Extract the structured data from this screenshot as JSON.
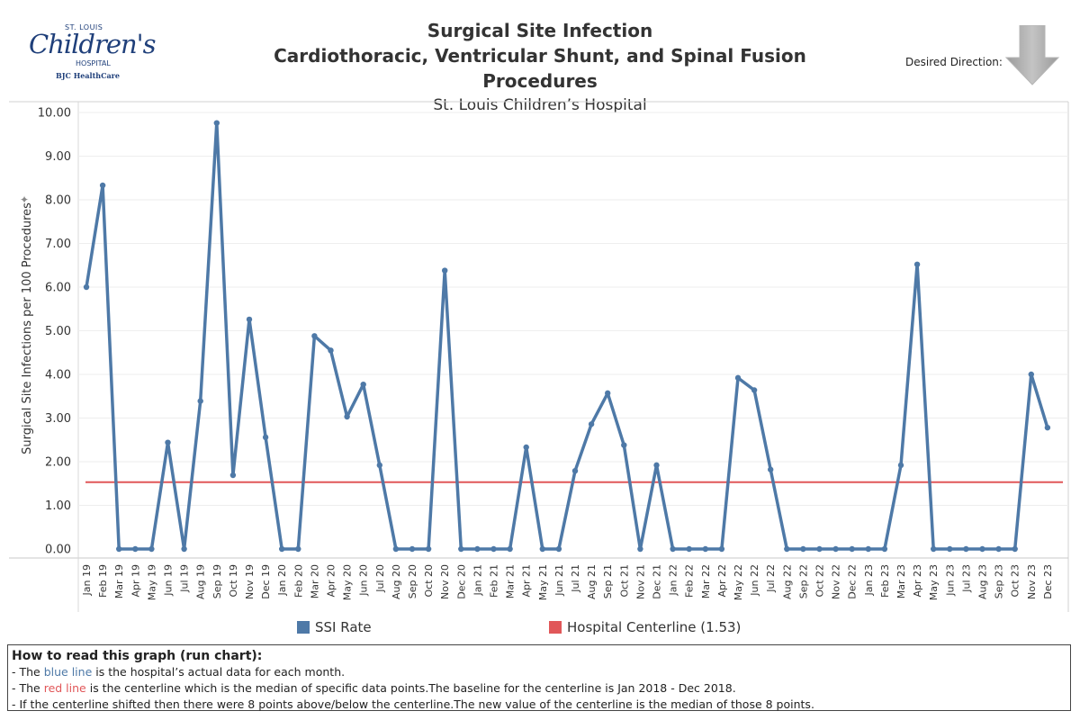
{
  "logo": {
    "line1": "ST. LOUIS",
    "line2": "Children's",
    "line3": "HOSPITAL",
    "line4": "BJC HealthCare"
  },
  "header": {
    "title": "Surgical Site Infection",
    "subtitle": "Cardiothoracic, Ventricular Shunt, and Spinal Fusion Procedures",
    "org": "St. Louis Children’s Hospital",
    "direction_label": "Desired Direction:",
    "direction_icon": "down-arrow-icon"
  },
  "chart_data": {
    "type": "line",
    "ylabel": "Surgical Site Infections per 100 Procedures",
    "ylim": [
      0,
      10
    ],
    "yticks": [
      "0.00",
      "1.00",
      "2.00",
      "3.00",
      "4.00",
      "5.00",
      "6.00",
      "7.00",
      "8.00",
      "9.00",
      "10.00"
    ],
    "grid": true,
    "categories": [
      "Jan 19",
      "Feb 19",
      "Mar 19",
      "Apr 19",
      "May 19",
      "Jun 19",
      "Jul 19",
      "Aug 19",
      "Sep 19",
      "Oct 19",
      "Nov 19",
      "Dec 19",
      "Jan 20",
      "Feb 20",
      "Mar 20",
      "Apr 20",
      "May 20",
      "Jun 20",
      "Jul 20",
      "Aug 20",
      "Sep 20",
      "Oct 20",
      "Nov 20",
      "Dec 20",
      "Jan 21",
      "Feb 21",
      "Mar 21",
      "Apr 21",
      "May 21",
      "Jun 21",
      "Jul 21",
      "Aug 21",
      "Sep 21",
      "Oct 21",
      "Nov 21",
      "Dec 21",
      "Jan 22",
      "Feb 22",
      "Mar 22",
      "Apr 22",
      "May 22",
      "Jun 22",
      "Jul 22",
      "Aug 22",
      "Sep 22",
      "Oct 22",
      "Nov 22",
      "Dec 22",
      "Jan 23",
      "Feb 23",
      "Mar 23",
      "Apr 23",
      "May 23",
      "Jun 23",
      "Jul 23",
      "Aug 23",
      "Sep 23",
      "Oct 23",
      "Nov 23",
      "Dec 23"
    ],
    "series": [
      {
        "name": "SSI Rate",
        "color": "#4e79a7",
        "values": [
          6.0,
          8.33,
          0,
          0,
          0,
          2.44,
          0,
          3.39,
          9.76,
          1.69,
          5.26,
          2.56,
          0,
          0,
          4.88,
          4.55,
          3.03,
          3.77,
          1.92,
          0,
          0,
          0,
          6.38,
          0,
          0,
          0,
          0,
          2.33,
          0,
          0,
          1.79,
          2.86,
          3.57,
          2.38,
          0,
          1.92,
          0,
          0,
          0,
          0,
          3.92,
          3.64,
          1.82,
          0,
          0,
          0,
          0,
          0,
          0,
          0,
          1.92,
          6.52,
          0,
          0,
          0,
          0,
          0,
          0,
          4.0,
          2.78
        ]
      },
      {
        "name": "Hospital Centerline (1.53)",
        "color": "#e15759",
        "constant": 1.53
      }
    ],
    "legend_position": "bottom"
  },
  "legend": {
    "ssi_label": "SSI Rate",
    "centerline_label": "Hospital Centerline (1.53)",
    "ssi_color": "#4e79a7",
    "centerline_color": "#e15759"
  },
  "note": {
    "heading": "How to read this graph (run chart):",
    "line1_a": "- The ",
    "line1_b": "blue line",
    "line1_c": " is the hospital’s actual data for each month.",
    "line2_a": "- The ",
    "line2_b": "red line",
    "line2_c": " is the centerline which is the median of specific data points.The baseline for the centerline is Jan 2018 - Dec 2018.",
    "line3": "- If the centerline shifted then there were 8 points above/below the centerline.The new value of the centerline is the median of those 8 points."
  }
}
